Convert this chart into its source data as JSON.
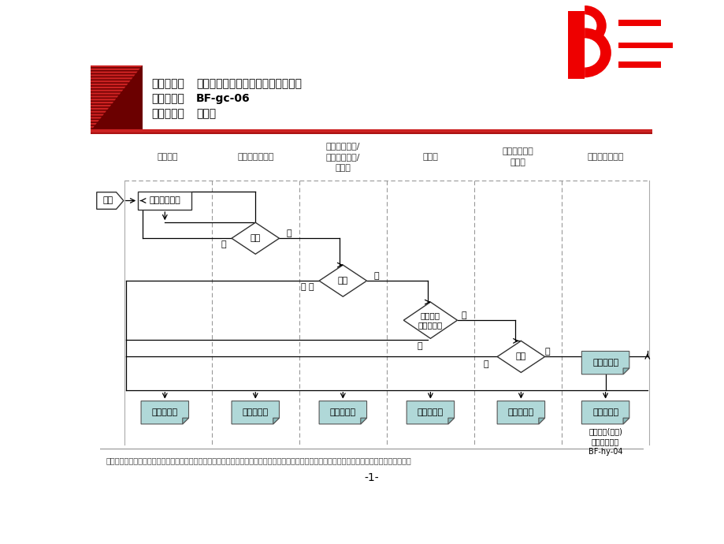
{
  "title_line1_normal": "流程名称：",
  "title_line1_bold": "施工现场签证审核流程（工程管理）",
  "title_line2_normal": "流程编号：",
  "title_line2_bold": "BF-gc-06",
  "title_line3_normal": "流程类别：",
  "title_line3_bold": "生产部",
  "columns": [
    "施工单位",
    "所属公司工程部",
    "所属公司总工/\n分管副总经理/\n总经理",
    "生产部",
    "集团生产建设\n副总裁",
    "财务中心预算室"
  ],
  "footer_text": "现场签证指除工程变更以外，对现场发生的工作量的核认。包括但不限于业主在施工合同之外，委托乙方的临时用工、零星工作，拆除清理障碍物等。",
  "page_number": "-1-",
  "bg_color": "#ffffff",
  "stripe_dark": "#8b1a1a",
  "stripe_light": "#cc2222",
  "doc_fill": "#b0d8d8",
  "doc_edge": "#888888",
  "note_text": "工程洽商(变更)\n预算管理流程\nBF-hy-04",
  "flow_start_label": "开始",
  "box1_label": "提出签证申请",
  "d1_label": "审批",
  "d2_label": "审批",
  "d3_label": "现场核实\n并提出意见",
  "d4_label": "审批",
  "doc_label": "现场签证单"
}
